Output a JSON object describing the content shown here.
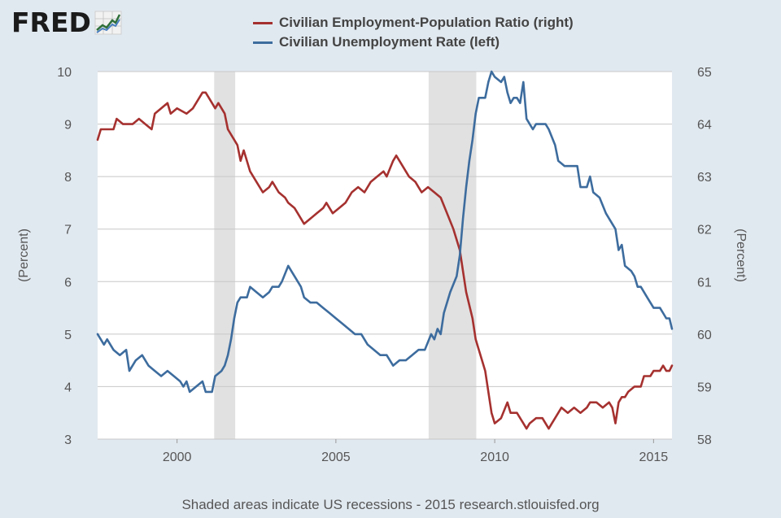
{
  "brand": {
    "name": "FRED",
    "icon": "line-chart-icon"
  },
  "legend": [
    {
      "label": "Civilian Employment-Population Ratio (right)",
      "color": "#a5312f"
    },
    {
      "label": "Civilian Unemployment Rate (left)",
      "color": "#3d6c9e"
    }
  ],
  "footer": {
    "note": "Shaded areas indicate US recessions - 2015 research.stlouisfed.org"
  },
  "chart_data": {
    "type": "line",
    "x_unit": "year (decimal)",
    "xlim": [
      1997.5,
      2015.58
    ],
    "x_ticks": [
      "2000",
      "2005",
      "2010",
      "2015"
    ],
    "left_axis": {
      "label": "(Percent)",
      "ylim": [
        3,
        10
      ],
      "ticks": [
        "3",
        "4",
        "5",
        "6",
        "7",
        "8",
        "9",
        "10"
      ]
    },
    "right_axis": {
      "label": "(Percent)",
      "ylim": [
        58,
        65
      ],
      "ticks": [
        "58",
        "59",
        "60",
        "61",
        "62",
        "63",
        "64",
        "65"
      ]
    },
    "grid": "horizontal",
    "recessions": [
      [
        2001.17,
        2001.83
      ],
      [
        2007.92,
        2009.42
      ]
    ],
    "series": [
      {
        "name": "Civilian Employment-Population Ratio (right)",
        "axis": "right",
        "color": "#a5312f",
        "points": [
          [
            1997.5,
            63.7
          ],
          [
            1997.6,
            63.9
          ],
          [
            1998.0,
            63.9
          ],
          [
            1998.1,
            64.1
          ],
          [
            1998.3,
            64.0
          ],
          [
            1998.6,
            64.0
          ],
          [
            1998.8,
            64.1
          ],
          [
            1999.0,
            64.0
          ],
          [
            1999.2,
            63.9
          ],
          [
            1999.3,
            64.2
          ],
          [
            1999.5,
            64.3
          ],
          [
            1999.7,
            64.4
          ],
          [
            1999.8,
            64.2
          ],
          [
            2000.0,
            64.3
          ],
          [
            2000.3,
            64.2
          ],
          [
            2000.5,
            64.3
          ],
          [
            2000.8,
            64.6
          ],
          [
            2000.9,
            64.6
          ],
          [
            2001.1,
            64.4
          ],
          [
            2001.2,
            64.3
          ],
          [
            2001.3,
            64.4
          ],
          [
            2001.5,
            64.2
          ],
          [
            2001.6,
            63.9
          ],
          [
            2001.8,
            63.7
          ],
          [
            2001.9,
            63.6
          ],
          [
            2002.0,
            63.3
          ],
          [
            2002.1,
            63.5
          ],
          [
            2002.3,
            63.1
          ],
          [
            2002.5,
            62.9
          ],
          [
            2002.7,
            62.7
          ],
          [
            2002.9,
            62.8
          ],
          [
            2003.0,
            62.9
          ],
          [
            2003.2,
            62.7
          ],
          [
            2003.4,
            62.6
          ],
          [
            2003.5,
            62.5
          ],
          [
            2003.7,
            62.4
          ],
          [
            2003.8,
            62.3
          ],
          [
            2003.9,
            62.2
          ],
          [
            2004.0,
            62.1
          ],
          [
            2004.2,
            62.2
          ],
          [
            2004.4,
            62.3
          ],
          [
            2004.6,
            62.4
          ],
          [
            2004.7,
            62.5
          ],
          [
            2004.9,
            62.3
          ],
          [
            2005.1,
            62.4
          ],
          [
            2005.3,
            62.5
          ],
          [
            2005.5,
            62.7
          ],
          [
            2005.7,
            62.8
          ],
          [
            2005.9,
            62.7
          ],
          [
            2006.1,
            62.9
          ],
          [
            2006.3,
            63.0
          ],
          [
            2006.5,
            63.1
          ],
          [
            2006.6,
            63.0
          ],
          [
            2006.8,
            63.3
          ],
          [
            2006.9,
            63.4
          ],
          [
            2007.1,
            63.2
          ],
          [
            2007.3,
            63.0
          ],
          [
            2007.5,
            62.9
          ],
          [
            2007.6,
            62.8
          ],
          [
            2007.7,
            62.7
          ],
          [
            2007.9,
            62.8
          ],
          [
            2008.1,
            62.7
          ],
          [
            2008.3,
            62.6
          ],
          [
            2008.5,
            62.3
          ],
          [
            2008.7,
            62.0
          ],
          [
            2008.9,
            61.6
          ],
          [
            2009.0,
            61.2
          ],
          [
            2009.1,
            60.8
          ],
          [
            2009.3,
            60.3
          ],
          [
            2009.4,
            59.9
          ],
          [
            2009.5,
            59.7
          ],
          [
            2009.6,
            59.5
          ],
          [
            2009.7,
            59.3
          ],
          [
            2009.8,
            58.9
          ],
          [
            2009.9,
            58.5
          ],
          [
            2010.0,
            58.3
          ],
          [
            2010.2,
            58.4
          ],
          [
            2010.4,
            58.7
          ],
          [
            2010.5,
            58.5
          ],
          [
            2010.7,
            58.5
          ],
          [
            2010.9,
            58.3
          ],
          [
            2011.0,
            58.2
          ],
          [
            2011.1,
            58.3
          ],
          [
            2011.3,
            58.4
          ],
          [
            2011.5,
            58.4
          ],
          [
            2011.7,
            58.2
          ],
          [
            2011.8,
            58.3
          ],
          [
            2011.9,
            58.4
          ],
          [
            2012.1,
            58.6
          ],
          [
            2012.3,
            58.5
          ],
          [
            2012.5,
            58.6
          ],
          [
            2012.7,
            58.5
          ],
          [
            2012.9,
            58.6
          ],
          [
            2013.0,
            58.7
          ],
          [
            2013.2,
            58.7
          ],
          [
            2013.4,
            58.6
          ],
          [
            2013.6,
            58.7
          ],
          [
            2013.7,
            58.6
          ],
          [
            2013.8,
            58.3
          ],
          [
            2013.9,
            58.7
          ],
          [
            2014.0,
            58.8
          ],
          [
            2014.1,
            58.8
          ],
          [
            2014.2,
            58.9
          ],
          [
            2014.4,
            59.0
          ],
          [
            2014.6,
            59.0
          ],
          [
            2014.7,
            59.2
          ],
          [
            2014.9,
            59.2
          ],
          [
            2015.0,
            59.3
          ],
          [
            2015.2,
            59.3
          ],
          [
            2015.3,
            59.4
          ],
          [
            2015.4,
            59.3
          ],
          [
            2015.5,
            59.3
          ],
          [
            2015.58,
            59.4
          ]
        ]
      },
      {
        "name": "Civilian Unemployment Rate (left)",
        "axis": "left",
        "color": "#3d6c9e",
        "points": [
          [
            1997.5,
            5.0
          ],
          [
            1997.7,
            4.8
          ],
          [
            1997.8,
            4.9
          ],
          [
            1998.0,
            4.7
          ],
          [
            1998.2,
            4.6
          ],
          [
            1998.4,
            4.7
          ],
          [
            1998.5,
            4.3
          ],
          [
            1998.7,
            4.5
          ],
          [
            1998.9,
            4.6
          ],
          [
            1999.1,
            4.4
          ],
          [
            1999.3,
            4.3
          ],
          [
            1999.5,
            4.2
          ],
          [
            1999.7,
            4.3
          ],
          [
            1999.9,
            4.2
          ],
          [
            2000.1,
            4.1
          ],
          [
            2000.2,
            4.0
          ],
          [
            2000.3,
            4.1
          ],
          [
            2000.4,
            3.9
          ],
          [
            2000.6,
            4.0
          ],
          [
            2000.8,
            4.1
          ],
          [
            2000.9,
            3.9
          ],
          [
            2001.1,
            3.9
          ],
          [
            2001.2,
            4.2
          ],
          [
            2001.4,
            4.3
          ],
          [
            2001.5,
            4.4
          ],
          [
            2001.6,
            4.6
          ],
          [
            2001.7,
            4.9
          ],
          [
            2001.8,
            5.3
          ],
          [
            2001.9,
            5.6
          ],
          [
            2002.0,
            5.7
          ],
          [
            2002.2,
            5.7
          ],
          [
            2002.3,
            5.9
          ],
          [
            2002.5,
            5.8
          ],
          [
            2002.7,
            5.7
          ],
          [
            2002.9,
            5.8
          ],
          [
            2003.0,
            5.9
          ],
          [
            2003.2,
            5.9
          ],
          [
            2003.3,
            6.0
          ],
          [
            2003.5,
            6.3
          ],
          [
            2003.6,
            6.2
          ],
          [
            2003.7,
            6.1
          ],
          [
            2003.9,
            5.9
          ],
          [
            2004.0,
            5.7
          ],
          [
            2004.2,
            5.6
          ],
          [
            2004.4,
            5.6
          ],
          [
            2004.6,
            5.5
          ],
          [
            2004.8,
            5.4
          ],
          [
            2005.0,
            5.3
          ],
          [
            2005.2,
            5.2
          ],
          [
            2005.4,
            5.1
          ],
          [
            2005.6,
            5.0
          ],
          [
            2005.8,
            5.0
          ],
          [
            2006.0,
            4.8
          ],
          [
            2006.2,
            4.7
          ],
          [
            2006.4,
            4.6
          ],
          [
            2006.6,
            4.6
          ],
          [
            2006.8,
            4.4
          ],
          [
            2007.0,
            4.5
          ],
          [
            2007.2,
            4.5
          ],
          [
            2007.4,
            4.6
          ],
          [
            2007.6,
            4.7
          ],
          [
            2007.8,
            4.7
          ],
          [
            2008.0,
            5.0
          ],
          [
            2008.1,
            4.9
          ],
          [
            2008.2,
            5.1
          ],
          [
            2008.3,
            5.0
          ],
          [
            2008.4,
            5.4
          ],
          [
            2008.5,
            5.6
          ],
          [
            2008.6,
            5.8
          ],
          [
            2008.8,
            6.1
          ],
          [
            2008.9,
            6.5
          ],
          [
            2009.0,
            7.2
          ],
          [
            2009.1,
            7.8
          ],
          [
            2009.2,
            8.3
          ],
          [
            2009.3,
            8.7
          ],
          [
            2009.4,
            9.2
          ],
          [
            2009.5,
            9.5
          ],
          [
            2009.7,
            9.5
          ],
          [
            2009.8,
            9.8
          ],
          [
            2009.9,
            10.0
          ],
          [
            2010.0,
            9.9
          ],
          [
            2010.2,
            9.8
          ],
          [
            2010.3,
            9.9
          ],
          [
            2010.4,
            9.6
          ],
          [
            2010.5,
            9.4
          ],
          [
            2010.6,
            9.5
          ],
          [
            2010.7,
            9.5
          ],
          [
            2010.8,
            9.4
          ],
          [
            2010.9,
            9.8
          ],
          [
            2011.0,
            9.1
          ],
          [
            2011.1,
            9.0
          ],
          [
            2011.2,
            8.9
          ],
          [
            2011.3,
            9.0
          ],
          [
            2011.5,
            9.0
          ],
          [
            2011.6,
            9.0
          ],
          [
            2011.7,
            8.9
          ],
          [
            2011.9,
            8.6
          ],
          [
            2012.0,
            8.3
          ],
          [
            2012.2,
            8.2
          ],
          [
            2012.4,
            8.2
          ],
          [
            2012.6,
            8.2
          ],
          [
            2012.7,
            7.8
          ],
          [
            2012.9,
            7.8
          ],
          [
            2013.0,
            8.0
          ],
          [
            2013.1,
            7.7
          ],
          [
            2013.3,
            7.6
          ],
          [
            2013.5,
            7.3
          ],
          [
            2013.6,
            7.2
          ],
          [
            2013.8,
            7.0
          ],
          [
            2013.9,
            6.6
          ],
          [
            2014.0,
            6.7
          ],
          [
            2014.1,
            6.3
          ],
          [
            2014.3,
            6.2
          ],
          [
            2014.4,
            6.1
          ],
          [
            2014.5,
            5.9
          ],
          [
            2014.6,
            5.9
          ],
          [
            2014.7,
            5.8
          ],
          [
            2014.8,
            5.7
          ],
          [
            2014.9,
            5.6
          ],
          [
            2015.0,
            5.5
          ],
          [
            2015.2,
            5.5
          ],
          [
            2015.3,
            5.4
          ],
          [
            2015.4,
            5.3
          ],
          [
            2015.5,
            5.3
          ],
          [
            2015.58,
            5.1
          ]
        ]
      }
    ]
  }
}
